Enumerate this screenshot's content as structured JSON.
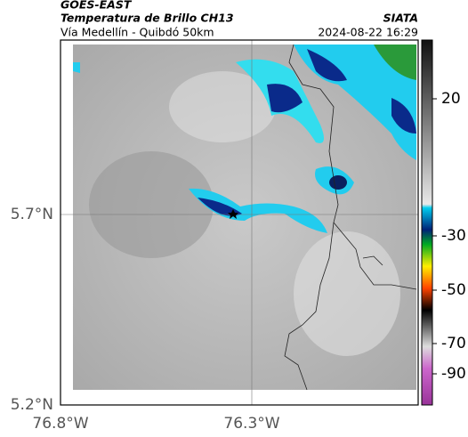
{
  "header": {
    "satellite": "GOES-EAST",
    "product": "Temperatura de Brillo CH13",
    "route": "Vía Medellín - Quibdó 50km",
    "source": "SIATA",
    "timestamp": "2024-08-22 16:29"
  },
  "map": {
    "lat_labels": [
      "5.7°N",
      "5.2°N"
    ],
    "lon_labels": [
      "76.8°W",
      "76.3°W"
    ]
  },
  "colorbar": {
    "ticks": [
      20,
      -30,
      -50,
      -70,
      -90
    ]
  }
}
